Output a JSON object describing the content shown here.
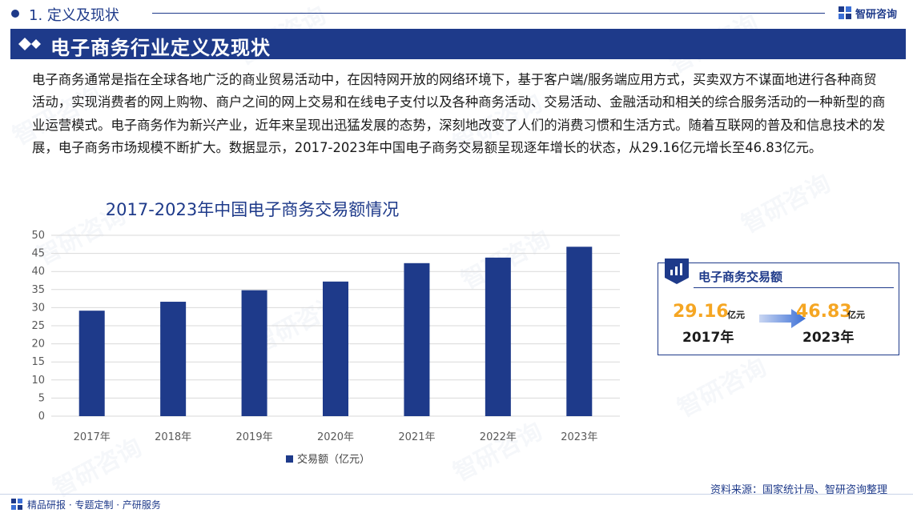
{
  "header": {
    "section": "1. 定义及现状",
    "logo_text": "智研咨询"
  },
  "title": "电子商务行业定义及现状",
  "description": "电子商务通常是指在全球各地广泛的商业贸易活动中，在因特网开放的网络环境下，基于客户端/服务端应用方式，买卖双方不谋面地进行各种商贸活动，实现消费者的网上购物、商户之间的网上交易和在线电子支付以及各种商务活动、交易活动、金融活动和相关的综合服务活动的一种新型的商业运营模式。电子商务作为新兴产业，近年来呈现出迅猛发展的态势，深刻地改变了人们的消费习惯和生活方式。随着互联网的普及和信息技术的发展，电子商务市场规模不断扩大。数据显示，2017-2023年中国电子商务交易额呈现逐年增长的状态，从29.16亿元增长至46.83亿元。",
  "chart_data": {
    "type": "bar",
    "title": "2017-2023年中国电子商务交易额情况",
    "categories": [
      "2017年",
      "2018年",
      "2019年",
      "2020年",
      "2021年",
      "2022年",
      "2023年"
    ],
    "series": [
      {
        "name": "交易额（亿元）",
        "values": [
          29.16,
          31.63,
          34.81,
          37.21,
          42.3,
          43.83,
          46.83
        ],
        "color": "#1e3a8a"
      }
    ],
    "ylim": [
      0,
      50
    ],
    "yticks": [
      0,
      5,
      10,
      15,
      20,
      25,
      30,
      35,
      40,
      45,
      50
    ],
    "grid": true,
    "legend": "bottom"
  },
  "info_box": {
    "label": "电子商务交易额",
    "start_value": "29.16",
    "start_unit": "亿元",
    "start_year": "2017年",
    "end_value": "46.83",
    "end_unit": "亿元",
    "end_year": "2023年"
  },
  "source": "资料来源：国家统计局、智研咨询整理",
  "footer": "精品研报 · 专题定制 · 产研服务",
  "watermark": "智研咨询",
  "colors": {
    "brand": "#1e3a8a",
    "accent": "#f5a623"
  }
}
